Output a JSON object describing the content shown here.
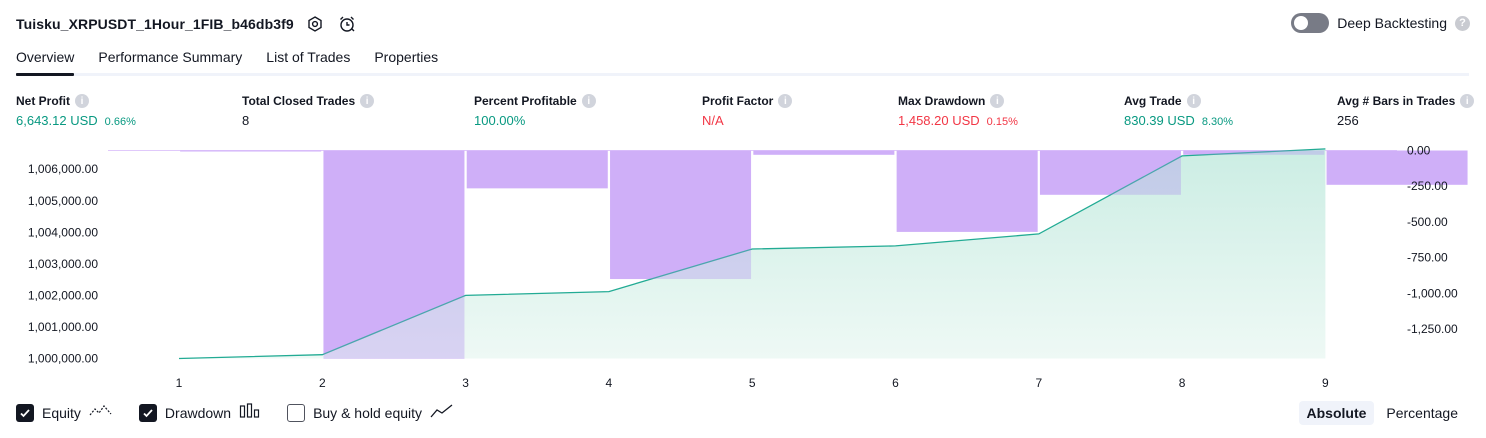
{
  "header": {
    "title": "Tuisku_XRPUSDT_1Hour_1FIB_b46db3f9",
    "deep_backtesting_label": "Deep Backtesting",
    "deep_backtesting_on": false
  },
  "tabs": [
    {
      "label": "Overview",
      "active": true
    },
    {
      "label": "Performance Summary",
      "active": false
    },
    {
      "label": "List of Trades",
      "active": false
    },
    {
      "label": "Properties",
      "active": false
    }
  ],
  "metrics": {
    "net_profit": {
      "label": "Net Profit",
      "value": "6,643.12 USD",
      "sub": "0.66%"
    },
    "total_closed_trades": {
      "label": "Total Closed Trades",
      "value": "8"
    },
    "percent_profitable": {
      "label": "Percent Profitable",
      "value": "100.00%"
    },
    "profit_factor": {
      "label": "Profit Factor",
      "value": "N/A"
    },
    "max_drawdown": {
      "label": "Max Drawdown",
      "value": "1,458.20 USD",
      "sub": "0.15%"
    },
    "avg_trade": {
      "label": "Avg Trade",
      "value": "830.39 USD",
      "sub": "8.30%"
    },
    "avg_bars": {
      "label": "Avg # Bars in Trades",
      "value": "256"
    }
  },
  "colors": {
    "positive": "#089981",
    "negative": "#f23645",
    "equity_line": "#22ab94",
    "equity_fill": "#cdeee5",
    "drawdown_bar": "#d9b8fb",
    "overlap": "#aab7e6"
  },
  "chart_data": {
    "type": "area",
    "x": [
      1,
      2,
      3,
      4,
      5,
      6,
      7,
      8,
      9
    ],
    "series": [
      {
        "name": "Equity",
        "axis": "left",
        "values": [
          1000000,
          1000120,
          1002000,
          1002120,
          1003470,
          1003570,
          1003950,
          1006420,
          1006643
        ]
      },
      {
        "name": "Drawdown",
        "axis": "right",
        "type": "bar",
        "categories": [
          1.5,
          2.5,
          3.5,
          4.5,
          5.5,
          6.5,
          7.5,
          8.5,
          9.5
        ],
        "values": [
          -5,
          -1458.2,
          -265,
          -900,
          -30,
          -570,
          -310,
          -30,
          -240
        ]
      }
    ],
    "left_ticks": [
      "1,000,000.00",
      "1,001,000.00",
      "1,002,000.00",
      "1,003,000.00",
      "1,004,000.00",
      "1,005,000.00",
      "1,006,000.00"
    ],
    "left_tick_values": [
      1000000,
      1001000,
      1002000,
      1003000,
      1004000,
      1005000,
      1006000
    ],
    "right_ticks": [
      "0.00",
      "-250.00",
      "-500.00",
      "-750.00",
      "-1,000.00",
      "-1,250.00"
    ],
    "right_tick_values": [
      0,
      -250,
      -500,
      -750,
      -1000,
      -1250
    ],
    "x_ticks": [
      "1",
      "2",
      "3",
      "4",
      "5",
      "6",
      "7",
      "8",
      "9"
    ]
  },
  "legend": {
    "equity": {
      "label": "Equity",
      "checked": true
    },
    "drawdown": {
      "label": "Drawdown",
      "checked": true
    },
    "buy_hold": {
      "label": "Buy & hold equity",
      "checked": false
    }
  },
  "modes": [
    {
      "label": "Absolute",
      "active": true
    },
    {
      "label": "Percentage",
      "active": false
    }
  ]
}
